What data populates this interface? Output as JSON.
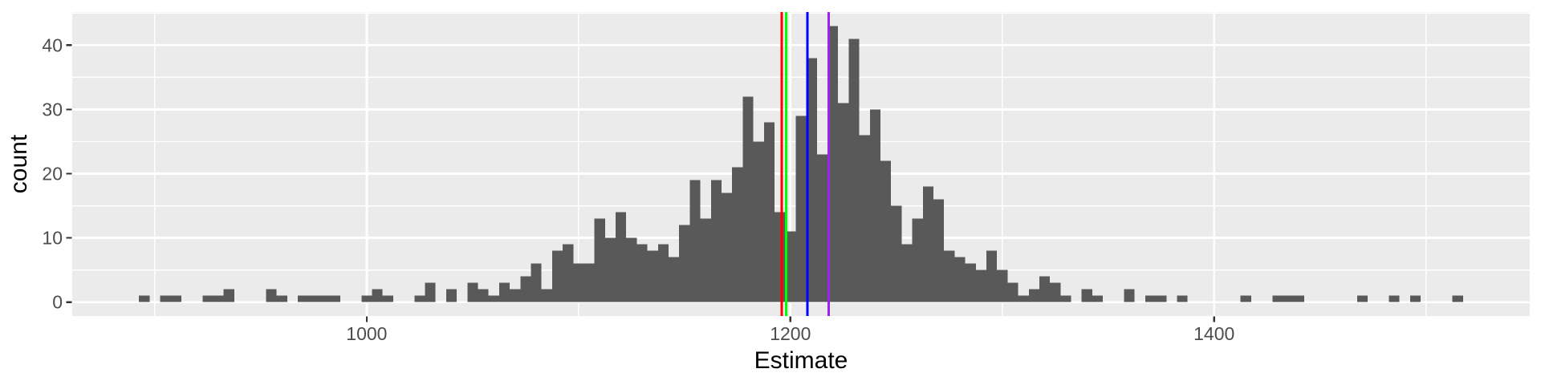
{
  "figure": {
    "background": "#FFFFFF",
    "panel_background": "#EBEBEB",
    "gridline_color": "#FFFFFF",
    "bar_fill": "#595959",
    "tick_mark_color": "#333333",
    "tick_label_color": "#4D4D4D",
    "axis_title_color": "#000000"
  },
  "chart_data": {
    "type": "bar",
    "subtype": "histogram",
    "title": "",
    "xlabel": "Estimate",
    "ylabel": "count",
    "legend": "none",
    "grid": true,
    "xlim": [
      861,
      1549
    ],
    "ylim": [
      -2.16,
      45.16
    ],
    "x_ticks": [
      1000,
      1200,
      1400
    ],
    "x_tick_labels": [
      "1000",
      "1200",
      "1400"
    ],
    "x_minor_gridlines": [
      900,
      1100,
      1300,
      1500
    ],
    "y_ticks": [
      0,
      10,
      20,
      30,
      40
    ],
    "y_tick_labels": [
      "0",
      "10",
      "20",
      "30",
      "40"
    ],
    "y_minor_gridlines": [
      5,
      15,
      25,
      35,
      45
    ],
    "bin_start": 892.5,
    "bin_width": 5,
    "bin_counts": [
      1,
      0,
      1,
      1,
      0,
      0,
      1,
      1,
      2,
      0,
      0,
      0,
      2,
      1,
      0,
      1,
      1,
      1,
      1,
      0,
      0,
      1,
      2,
      1,
      0,
      0,
      1,
      3,
      0,
      2,
      0,
      3,
      2,
      1,
      3,
      2,
      4,
      6,
      2,
      8,
      9,
      6,
      6,
      13,
      10,
      14,
      10,
      9,
      8,
      9,
      7,
      12,
      19,
      13,
      19,
      17,
      21,
      32,
      25,
      28,
      14,
      11,
      29,
      38,
      23,
      43,
      31,
      41,
      26,
      30,
      22,
      15,
      9,
      13,
      18,
      16,
      8,
      7,
      6,
      5,
      8,
      5,
      3,
      1,
      2,
      4,
      3,
      1,
      0,
      2,
      1,
      0,
      0,
      2,
      0,
      1,
      1,
      0,
      1,
      0,
      0,
      0,
      0,
      0,
      1,
      0,
      0,
      1,
      1,
      1,
      0,
      0,
      0,
      0,
      0,
      1,
      0,
      0,
      1,
      0,
      1,
      0,
      0,
      0,
      1
    ],
    "vlines": [
      {
        "value": 1196,
        "color": "#FF0000",
        "name": "red-vline"
      },
      {
        "value": 1198,
        "color": "#00FF00",
        "name": "green-vline"
      },
      {
        "value": 1208,
        "color": "#0000FF",
        "name": "blue-vline"
      },
      {
        "value": 1218,
        "color": "#A020F0",
        "name": "purple-vline"
      }
    ]
  }
}
